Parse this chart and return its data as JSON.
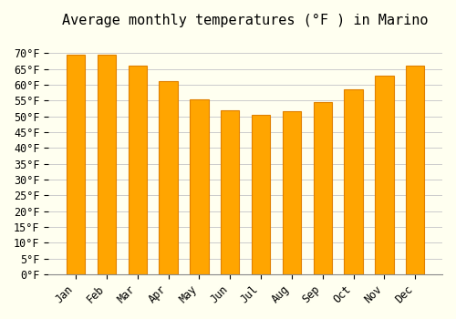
{
  "title": "Average monthly temperatures (°F ) in Marino",
  "months": [
    "Jan",
    "Feb",
    "Mar",
    "Apr",
    "May",
    "Jun",
    "Jul",
    "Aug",
    "Sep",
    "Oct",
    "Nov",
    "Dec"
  ],
  "values": [
    69.5,
    69.5,
    66,
    61,
    55.5,
    52,
    50.5,
    51.5,
    54.5,
    58.5,
    63,
    66
  ],
  "bar_color": "#FFA500",
  "bar_edge_color": "#E08000",
  "background_color": "#FFFFF0",
  "grid_color": "#CCCCCC",
  "ylim": [
    0,
    75
  ],
  "yticks": [
    0,
    5,
    10,
    15,
    20,
    25,
    30,
    35,
    40,
    45,
    50,
    55,
    60,
    65,
    70
  ],
  "title_fontsize": 11,
  "tick_fontsize": 8.5
}
